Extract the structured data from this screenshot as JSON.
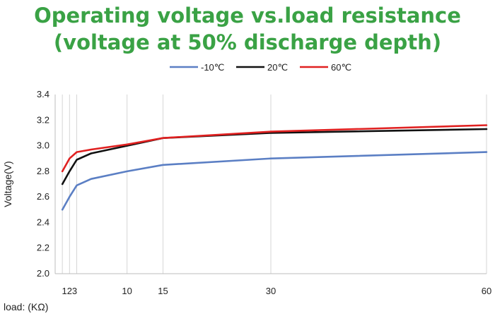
{
  "chart_data": {
    "type": "line",
    "title": "Operating voltage vs.load resistance",
    "subtitle": "(voltage at 50% discharge depth)",
    "xlabel": "load: (KΩ)",
    "ylabel": "Voltage(V)",
    "ylim": [
      2.0,
      3.4
    ],
    "yticks": [
      "2.0",
      "2.2",
      "2.4",
      "2.6",
      "2.8",
      "3.0",
      "3.2",
      "3.4"
    ],
    "xtick_labels": [
      "123",
      "10",
      "15",
      "30",
      "60"
    ],
    "grid": "vertical lines at x ticks",
    "legend_placement": "top-center",
    "series": [
      {
        "name": "-10℃",
        "color": "#5b7fc4",
        "x": [
          1,
          2,
          3,
          5,
          10,
          15,
          30,
          60
        ],
        "y": [
          2.5,
          2.6,
          2.69,
          2.74,
          2.8,
          2.85,
          2.9,
          2.95
        ]
      },
      {
        "name": "20℃",
        "color": "#111111",
        "x": [
          1,
          2,
          3,
          5,
          10,
          15,
          30,
          60
        ],
        "y": [
          2.7,
          2.8,
          2.89,
          2.94,
          3.0,
          3.06,
          3.1,
          3.13
        ]
      },
      {
        "name": "60℃",
        "color": "#e02020",
        "x": [
          1,
          2,
          3,
          5,
          10,
          15,
          30,
          60
        ],
        "y": [
          2.8,
          2.9,
          2.95,
          2.97,
          3.01,
          3.06,
          3.11,
          3.16
        ]
      }
    ]
  }
}
